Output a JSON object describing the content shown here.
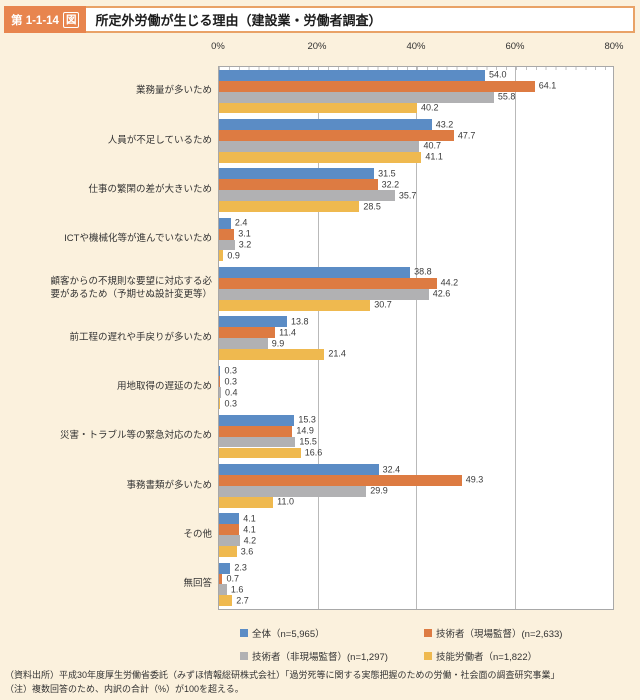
{
  "header": {
    "badge_prefix": "第 1-1-14",
    "badge_boxed": "図",
    "title": "所定外労働が生じる理由（建設業・労働者調査）"
  },
  "chart_data": {
    "type": "bar",
    "orientation": "horizontal",
    "title": "所定外労働が生じる理由（建設業・労働者調査）",
    "xlim": [
      0,
      80
    ],
    "x_ticks": [
      {
        "value": 0,
        "label": "0%"
      },
      {
        "value": 20,
        "label": "20%"
      },
      {
        "value": 40,
        "label": "40%"
      },
      {
        "value": 60,
        "label": "60%"
      },
      {
        "value": 80,
        "label": "80%"
      }
    ],
    "gridlines_at": [
      20,
      40,
      60
    ],
    "grid": true,
    "legend_position": "bottom",
    "categories": [
      "業務量が多いため",
      "人員が不足しているため",
      "仕事の繁閑の差が大きいため",
      "ICTや機械化等が進んでいないため",
      "顧客からの不規則な要望に対応する必\n要があるため（予期せぬ設計変更等）",
      "前工程の遅れや手戻りが多いため",
      "用地取得の遅延のため",
      "災害・トラブル等の緊急対応のため",
      "事務書類が多いため",
      "その他",
      "無回答"
    ],
    "series": [
      {
        "name": "全体（n=5,965）",
        "color": "#5b8cc5",
        "values": [
          54.0,
          43.2,
          31.5,
          2.4,
          38.8,
          13.8,
          0.3,
          15.3,
          32.4,
          4.1,
          2.3
        ]
      },
      {
        "name": "技術者（現場監督）(n=2,633)",
        "color": "#dd7b42",
        "values": [
          64.1,
          47.7,
          32.2,
          3.1,
          44.2,
          11.4,
          0.3,
          14.9,
          49.3,
          4.1,
          0.7
        ]
      },
      {
        "name": "技術者（非現場監督）(n=1,297)",
        "color": "#b1b1b3",
        "values": [
          55.8,
          40.7,
          35.7,
          3.2,
          42.6,
          9.9,
          0.4,
          15.5,
          29.9,
          4.2,
          1.6
        ]
      },
      {
        "name": "技能労働者（n=1,822）",
        "color": "#efb94f",
        "values": [
          40.2,
          41.1,
          28.5,
          0.9,
          30.7,
          21.4,
          0.3,
          16.6,
          11.0,
          3.6,
          2.7
        ]
      }
    ]
  },
  "footnotes": {
    "source": "（資料出所）平成30年度厚生労働省委託（みずほ情報総研株式会社）「過労死等に関する実態把握のための労働・社会面の調査研究事業」",
    "note": "（注）複数回答のため、内訳の合計（%）が100を超える。"
  }
}
